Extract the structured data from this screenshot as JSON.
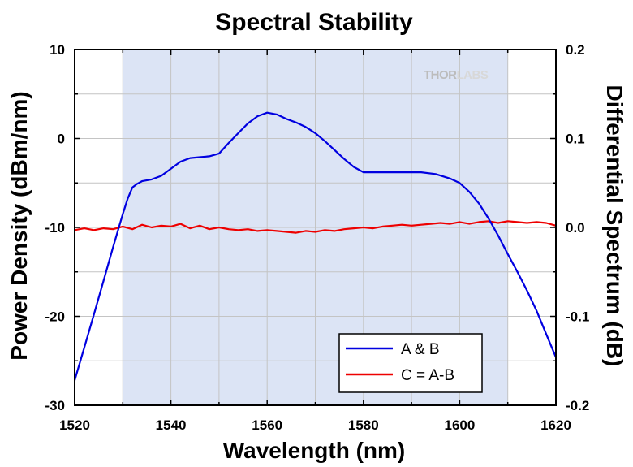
{
  "chart_data": {
    "type": "line",
    "title": "Spectral Stability",
    "xlabel": "Wavelength (nm)",
    "ylabel_left": "Power Density (dBm/nm)",
    "ylabel_right": "Differential Spectrum (dB)",
    "xlim": [
      1520,
      1620
    ],
    "ylim_left": [
      -30,
      10
    ],
    "ylim_right": [
      -0.2,
      0.2
    ],
    "x_ticks": [
      "1520",
      "1540",
      "1560",
      "1580",
      "1600",
      "1620"
    ],
    "y_left_ticks": [
      "10",
      "0",
      "-10",
      "-20",
      "-30"
    ],
    "y_right_ticks": [
      "0.2",
      "0.1",
      "0.0",
      "-0.1",
      "-0.2"
    ],
    "grid": true,
    "shaded_region": [
      1530,
      1610
    ],
    "watermark": {
      "thor": "THOR",
      "labs": "LABS"
    },
    "legend": {
      "placement": "bottom-right"
    },
    "colors": {
      "series_ab": "#0000e0",
      "series_c": "#ee0000",
      "shade": "#dce4f5",
      "grid": "#c4c4c4"
    },
    "series": [
      {
        "name": "A & B",
        "axis": "left",
        "x": [
          1520,
          1522,
          1524,
          1526,
          1528,
          1530,
          1531,
          1532,
          1533,
          1534,
          1536,
          1538,
          1540,
          1542,
          1544,
          1546,
          1548,
          1550,
          1552,
          1554,
          1556,
          1558,
          1560,
          1562,
          1564,
          1566,
          1568,
          1570,
          1572,
          1574,
          1576,
          1578,
          1580,
          1584,
          1588,
          1592,
          1595,
          1598,
          1600,
          1602,
          1604,
          1606,
          1608,
          1610,
          1612,
          1614,
          1616,
          1618,
          1620
        ],
        "y": [
          -27.2,
          -23.5,
          -19.8,
          -16.0,
          -12.2,
          -8.5,
          -6.8,
          -5.5,
          -5.1,
          -4.8,
          -4.6,
          -4.2,
          -3.4,
          -2.6,
          -2.2,
          -2.1,
          -2.0,
          -1.7,
          -0.5,
          0.6,
          1.7,
          2.5,
          2.9,
          2.7,
          2.2,
          1.8,
          1.3,
          0.6,
          -0.3,
          -1.3,
          -2.3,
          -3.2,
          -3.8,
          -3.8,
          -3.8,
          -3.8,
          -4.0,
          -4.5,
          -5.0,
          -6.0,
          -7.3,
          -9.0,
          -10.9,
          -13.0,
          -15.0,
          -17.1,
          -19.4,
          -22.0,
          -24.6
        ]
      },
      {
        "name": "C = A-B",
        "axis": "right",
        "x": [
          1520,
          1522,
          1524,
          1526,
          1528,
          1530,
          1532,
          1534,
          1536,
          1538,
          1540,
          1542,
          1544,
          1546,
          1548,
          1550,
          1552,
          1554,
          1556,
          1558,
          1560,
          1562,
          1564,
          1566,
          1568,
          1570,
          1572,
          1574,
          1576,
          1578,
          1580,
          1582,
          1584,
          1586,
          1588,
          1590,
          1592,
          1594,
          1596,
          1598,
          1600,
          1602,
          1604,
          1606,
          1608,
          1610,
          1612,
          1614,
          1616,
          1618,
          1620
        ],
        "y": [
          -0.003,
          -0.001,
          -0.003,
          -0.001,
          -0.002,
          0.001,
          -0.002,
          0.003,
          0.0,
          0.002,
          0.001,
          0.004,
          -0.001,
          0.002,
          -0.002,
          0.0,
          -0.002,
          -0.003,
          -0.002,
          -0.004,
          -0.003,
          -0.004,
          -0.005,
          -0.006,
          -0.004,
          -0.005,
          -0.003,
          -0.004,
          -0.002,
          -0.001,
          0.0,
          -0.001,
          0.001,
          0.002,
          0.003,
          0.002,
          0.003,
          0.004,
          0.005,
          0.004,
          0.006,
          0.004,
          0.006,
          0.007,
          0.005,
          0.007,
          0.006,
          0.005,
          0.006,
          0.005,
          0.002
        ]
      }
    ]
  }
}
